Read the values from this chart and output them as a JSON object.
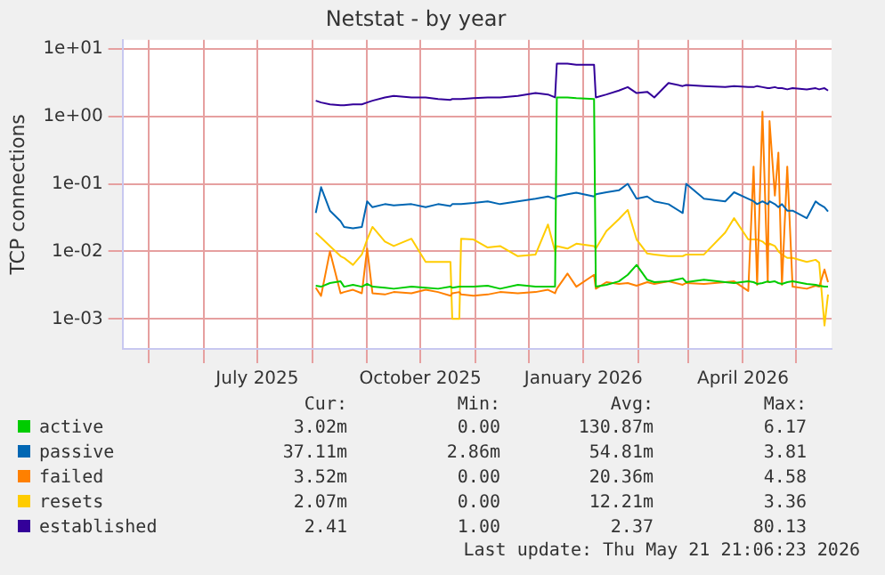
{
  "chart_data": {
    "type": "line",
    "title": "Netstat - by year",
    "ylabel": "TCP connections",
    "log": true,
    "grid": true,
    "legend": "bottom",
    "marker": "none",
    "line_style": "solid",
    "xlim": [
      "2025-04-16",
      "2026-05-21"
    ],
    "xticks": [
      {
        "value": "2025-05-01",
        "label": null
      },
      {
        "value": "2025-06-01",
        "label": null
      },
      {
        "value": "2025-07-01",
        "label": "July 2025"
      },
      {
        "value": "2025-08-01",
        "label": null
      },
      {
        "value": "2025-09-01",
        "label": null
      },
      {
        "value": "2025-10-01",
        "label": "October 2025"
      },
      {
        "value": "2025-11-01",
        "label": null
      },
      {
        "value": "2025-12-01",
        "label": null
      },
      {
        "value": "2026-01-01",
        "label": "January 2026"
      },
      {
        "value": "2026-02-01",
        "label": null
      },
      {
        "value": "2026-03-01",
        "label": null
      },
      {
        "value": "2026-04-01",
        "label": "April 2026"
      },
      {
        "value": "2026-05-01",
        "label": null
      }
    ],
    "ylim": [
      0.00036,
      13.5
    ],
    "yticks": [
      {
        "value": 0.001,
        "label": "1e-03"
      },
      {
        "value": 0.01,
        "label": "1e-02"
      },
      {
        "value": 0.1,
        "label": "1e-01"
      },
      {
        "value": 1,
        "label": "1e+00"
      },
      {
        "value": 10,
        "label": "1e+01"
      }
    ],
    "x": [
      "2025-08-03",
      "2025-08-06",
      "2025-08-11",
      "2025-08-17",
      "2025-08-19",
      "2025-08-24",
      "2025-08-29",
      "2025-09-01",
      "2025-09-04",
      "2025-09-11",
      "2025-09-16",
      "2025-09-26",
      "2025-10-04",
      "2025-10-11",
      "2025-10-18",
      "2025-10-19",
      "2025-10-23",
      "2025-10-24",
      "2025-10-31",
      "2025-11-08",
      "2025-11-15",
      "2025-11-25",
      "2025-12-05",
      "2025-12-12",
      "2025-12-16",
      "2025-12-17",
      "2025-12-23",
      "2025-12-28",
      "2026-01-07",
      "2026-01-08",
      "2026-01-14",
      "2026-01-21",
      "2026-01-26",
      "2026-01-31",
      "2026-02-06",
      "2026-02-10",
      "2026-02-18",
      "2026-02-26",
      "2026-02-28",
      "2026-03-10",
      "2026-03-22",
      "2026-03-27",
      "2026-04-04",
      "2026-04-07",
      "2026-04-09",
      "2026-04-12",
      "2026-04-15",
      "2026-04-16",
      "2026-04-19",
      "2026-04-21",
      "2026-04-23",
      "2026-04-26",
      "2026-04-29",
      "2026-05-07",
      "2026-05-12",
      "2026-05-14",
      "2026-05-17",
      "2026-05-19"
    ],
    "series": [
      {
        "name": "active",
        "color": "#00cc00",
        "values": [
          0.0031,
          0.003,
          0.0034,
          0.0036,
          0.003,
          0.0032,
          0.003,
          0.0033,
          0.003,
          0.0029,
          0.0028,
          0.003,
          0.0029,
          0.0028,
          0.003,
          0.0029,
          0.003,
          0.003,
          0.003,
          0.0031,
          0.0028,
          0.0032,
          0.003,
          0.003,
          0.003,
          1.9,
          1.9,
          1.85,
          1.8,
          0.003,
          0.0032,
          0.0036,
          0.0045,
          0.0063,
          0.0038,
          0.0035,
          0.0036,
          0.004,
          0.0035,
          0.0038,
          0.0035,
          0.0034,
          0.0036,
          0.0035,
          0.0033,
          0.0034,
          0.0036,
          0.0035,
          0.0036,
          0.0034,
          0.0033,
          0.0035,
          0.0036,
          0.0033,
          0.0032,
          0.0031,
          0.003,
          0.003
        ]
      },
      {
        "name": "passive",
        "color": "#0066b3",
        "values": [
          0.037,
          0.089,
          0.04,
          0.028,
          0.023,
          0.022,
          0.023,
          0.055,
          0.045,
          0.05,
          0.048,
          0.05,
          0.045,
          0.05,
          0.047,
          0.05,
          0.05,
          0.05,
          0.052,
          0.055,
          0.05,
          0.055,
          0.06,
          0.065,
          0.06,
          0.065,
          0.07,
          0.074,
          0.065,
          0.07,
          0.075,
          0.08,
          0.1,
          0.06,
          0.065,
          0.055,
          0.05,
          0.037,
          0.1,
          0.06,
          0.055,
          0.075,
          0.06,
          0.055,
          0.05,
          0.055,
          0.05,
          0.055,
          0.05,
          0.045,
          0.05,
          0.04,
          0.04,
          0.031,
          0.055,
          0.05,
          0.045,
          0.039
        ]
      },
      {
        "name": "failed",
        "color": "#ff8000",
        "values": [
          0.0029,
          0.0022,
          0.01,
          0.0024,
          0.0025,
          0.0027,
          0.0024,
          0.011,
          0.0024,
          0.0023,
          0.0025,
          0.0024,
          0.0027,
          0.0025,
          0.0022,
          0.0024,
          0.0025,
          0.0023,
          0.0022,
          0.0023,
          0.0025,
          0.0024,
          0.0025,
          0.0027,
          0.0024,
          0.0028,
          0.0047,
          0.003,
          0.0045,
          0.0028,
          0.0035,
          0.0033,
          0.0034,
          0.0031,
          0.0035,
          0.0033,
          0.0036,
          0.0032,
          0.0034,
          0.0033,
          0.0035,
          0.0036,
          0.0026,
          0.18,
          0.0032,
          1.17,
          0.0035,
          0.85,
          0.067,
          0.29,
          0.0032,
          0.18,
          0.003,
          0.0028,
          0.0031,
          0.003,
          0.0054,
          0.0035
        ]
      },
      {
        "name": "resets",
        "color": "#ffcc00",
        "values": [
          0.0188,
          0.016,
          0.012,
          0.0085,
          0.008,
          0.0063,
          0.009,
          0.015,
          0.023,
          0.014,
          0.012,
          0.0154,
          0.007,
          0.007,
          0.007,
          0.001,
          0.001,
          0.0154,
          0.015,
          0.0114,
          0.012,
          0.0085,
          0.009,
          0.025,
          0.01,
          0.012,
          0.011,
          0.013,
          0.012,
          0.011,
          0.02,
          0.03,
          0.041,
          0.015,
          0.0093,
          0.009,
          0.0085,
          0.0085,
          0.009,
          0.009,
          0.019,
          0.031,
          0.015,
          0.015,
          0.015,
          0.014,
          0.012,
          0.013,
          0.012,
          0.01,
          0.009,
          0.008,
          0.008,
          0.007,
          0.0075,
          0.0068,
          0.0008,
          0.0023
        ]
      },
      {
        "name": "established",
        "color": "#330099",
        "values": [
          1.7,
          1.6,
          1.5,
          1.45,
          1.45,
          1.5,
          1.5,
          1.6,
          1.7,
          1.9,
          2.0,
          1.9,
          1.9,
          1.8,
          1.75,
          1.8,
          1.8,
          1.8,
          1.85,
          1.9,
          1.9,
          2.0,
          2.2,
          2.1,
          1.9,
          6.0,
          6.0,
          5.8,
          5.8,
          1.9,
          2.1,
          2.4,
          2.7,
          2.2,
          2.3,
          1.9,
          3.1,
          2.8,
          2.9,
          2.8,
          2.7,
          2.8,
          2.7,
          2.7,
          2.8,
          2.7,
          2.6,
          2.6,
          2.7,
          2.6,
          2.6,
          2.5,
          2.6,
          2.5,
          2.6,
          2.5,
          2.6,
          2.4
        ]
      }
    ],
    "annotations": [
      "Cur:",
      "Min:",
      "Avg:",
      "Max:",
      "3.02m",
      "0.00",
      "130.87m",
      "6.17",
      "37.11m",
      "2.86m",
      "54.81m",
      "3.81",
      "3.52m",
      "0.00",
      "20.36m",
      "4.58",
      "2.07m",
      "0.00",
      "12.21m",
      "3.36",
      "2.41",
      "1.00",
      "2.37",
      "80.13",
      "Last update: Thu May 21 21:06:23 2026"
    ]
  }
}
